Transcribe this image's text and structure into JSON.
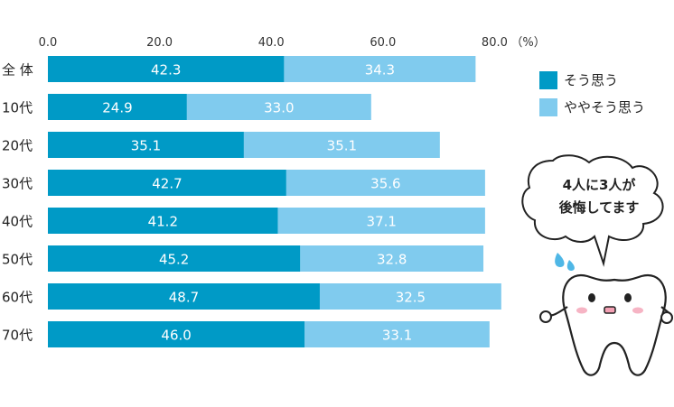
{
  "chart_data": {
    "type": "bar",
    "orientation": "horizontal",
    "stacked": true,
    "categories": [
      "全 体",
      "10代",
      "20代",
      "30代",
      "40代",
      "50代",
      "60代",
      "70代"
    ],
    "series": [
      {
        "name": "そう思う",
        "color": "#009ac6",
        "values": [
          42.3,
          24.9,
          35.1,
          42.7,
          41.2,
          45.2,
          48.7,
          46.0
        ]
      },
      {
        "name": "ややそう思う",
        "color": "#80cbee",
        "values": [
          34.3,
          33.0,
          35.1,
          35.6,
          37.1,
          32.8,
          32.5,
          33.1
        ]
      }
    ],
    "xlim": [
      0,
      80
    ],
    "ticks": [
      "0.0",
      "20.0",
      "40.0",
      "60.0",
      "80.0"
    ],
    "unit": "（%）",
    "legend": "right",
    "grid": false
  },
  "bubble": {
    "line1": "4人に3人が",
    "line2": "後悔してます"
  }
}
